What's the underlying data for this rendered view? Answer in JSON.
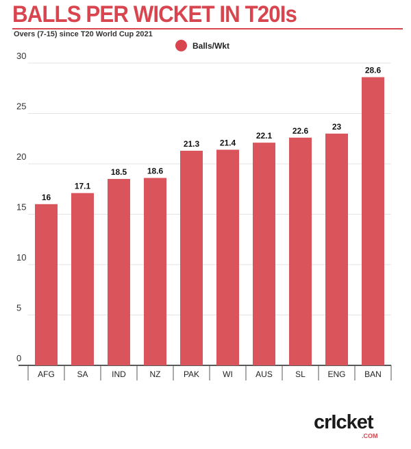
{
  "header": {
    "title": "BALLS PER WICKET IN T20Is",
    "subtitle": "Overs (7-15) since T20 World Cup 2021"
  },
  "logo": {
    "word": "crIcket",
    "sub": ".COM"
  },
  "colors": {
    "accent": "#d9454e",
    "bar": "#d9545b",
    "grid": "#e3e3e3"
  },
  "chart_data": {
    "type": "bar",
    "title": "BALLS PER WICKET IN T20Is",
    "subtitle": "Overs (7-15) since T20 World Cup 2021",
    "categories": [
      "AFG",
      "SA",
      "IND",
      "NZ",
      "PAK",
      "WI",
      "AUS",
      "SL",
      "ENG",
      "BAN"
    ],
    "series": [
      {
        "name": "Balls/Wkt",
        "values": [
          16,
          17.1,
          18.5,
          18.6,
          21.3,
          21.4,
          22.1,
          22.6,
          23,
          28.6
        ]
      }
    ],
    "data_labels": [
      "16",
      "17.1",
      "18.5",
      "18.6",
      "21.3",
      "21.4",
      "22.1",
      "22.6",
      "23",
      "28.6"
    ],
    "yticks": [
      0,
      5,
      10,
      15,
      20,
      25,
      30
    ],
    "ylim": [
      0,
      30
    ],
    "xlabel": "",
    "ylabel": "",
    "grid": true,
    "legend": "top-center"
  }
}
